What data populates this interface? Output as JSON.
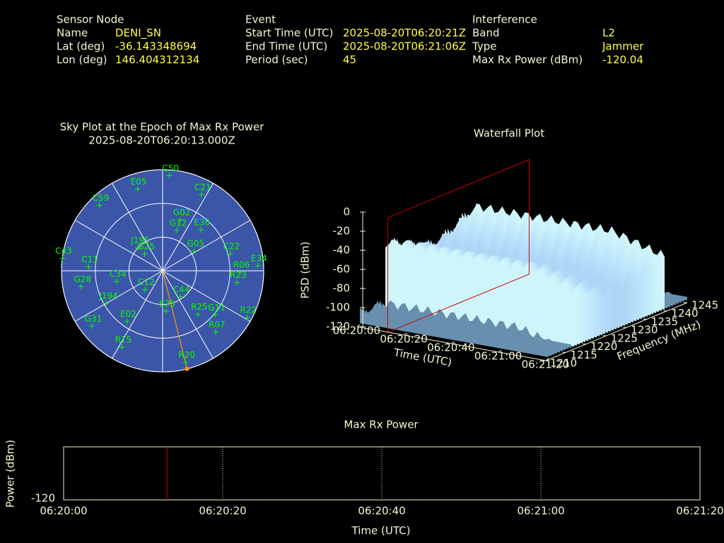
{
  "header": {
    "columns": [
      {
        "title": "Sensor Node",
        "rows": [
          [
            "Name",
            "DENI_SN"
          ],
          [
            "Lat (deg)",
            "-36.143348694"
          ],
          [
            "Lon (deg)",
            "146.404312134"
          ]
        ]
      },
      {
        "title": "Event",
        "rows": [
          [
            "Start Time (UTC)",
            "2025-08-20T06:20:21Z"
          ],
          [
            "End Time (UTC)",
            "2025-08-20T06:21:06Z"
          ],
          [
            "Period (sec)",
            "45"
          ]
        ]
      },
      {
        "title": "Interference",
        "rows": [
          [
            "Band",
            "L2"
          ],
          [
            "Type",
            "Jammer"
          ],
          [
            "Max Rx Power (dBm)",
            "-120.04"
          ]
        ]
      }
    ]
  },
  "chart_data": [
    {
      "type": "polar",
      "title": "Sky Plot at the Epoch of Max Rx Power",
      "subtitle": "2025-08-20T06:20:13.000Z",
      "background": "#3b55a8",
      "color": "#00ff00",
      "rticks": [
        0,
        30,
        60
      ],
      "azticks": [
        0,
        30,
        60,
        90,
        120,
        150,
        180,
        210,
        240,
        270,
        300,
        330
      ],
      "names": [
        "C50",
        "C21",
        "E05",
        "G02",
        "E36",
        "G05",
        "C22",
        "E34",
        "R06",
        "R23",
        "C44",
        "G11",
        "R22",
        "R07",
        "R25",
        "E25",
        "R20",
        "R15",
        "G31",
        "E02",
        "G28",
        "C11",
        "C43",
        "C59",
        "J195",
        "G25",
        "C34",
        "C12",
        "J194",
        "G12"
      ],
      "az": [
        4,
        27,
        343,
        19,
        43,
        58,
        76,
        87,
        91,
        99,
        146,
        130,
        119,
        139,
        141,
        175,
        166,
        208,
        232,
        215,
        259,
        273,
        277,
        316,
        313,
        313,
        257,
        223,
        240,
        19
      ],
      "el": [
        5,
        14,
        14,
        42,
        40,
        57,
        28,
        5,
        21,
        23,
        62,
        29,
        4,
        18,
        40,
        54,
        6,
        13,
        10,
        35,
        16,
        24,
        0,
        9,
        60,
        68,
        48,
        67,
        32,
        52
      ],
      "direction": {
        "az": 166,
        "el": 0,
        "color": "#ff9900"
      }
    },
    {
      "type": "surface",
      "title": "Waterfall Plot",
      "xlabel": "Time (UTC)",
      "ylabel": "Frequency (MHz)",
      "zlabel": "PSD (dBm)",
      "xlim": [
        0,
        80
      ],
      "xticks": [
        {
          "value": 0,
          "label": "06:20:00"
        },
        {
          "value": 20,
          "label": "06:20:20"
        },
        {
          "value": 40,
          "label": "06:20:40"
        },
        {
          "value": 60,
          "label": "06:21:00"
        },
        {
          "value": 80,
          "label": "06:21:20"
        }
      ],
      "ylim": [
        1210,
        1245
      ],
      "yticks": [
        1210,
        1215,
        1220,
        1225,
        1230,
        1235,
        1240,
        1245
      ],
      "zlim": [
        -120,
        0
      ],
      "zticks": [
        0,
        -20,
        -40,
        -60,
        -80,
        -100,
        -120
      ],
      "epoch": 13,
      "epoch_color": "#cc0000"
    },
    {
      "type": "line",
      "title": "Max Rx Power",
      "xlabel": "Time (UTC)",
      "ylabel": "Power (dBm)",
      "xlim": [
        0,
        80
      ],
      "xticks": [
        {
          "value": 0,
          "label": "06:20:00"
        },
        {
          "value": 20,
          "label": "06:20:20"
        },
        {
          "value": 40,
          "label": "06:20:40"
        },
        {
          "value": 60,
          "label": "06:21:00"
        },
        {
          "value": 80,
          "label": "06:21:20"
        }
      ],
      "ylim": [
        -120,
        -110
      ],
      "yticks": [
        -120
      ],
      "grid": true,
      "events": [
        13
      ],
      "event_color": "#cc0000"
    }
  ]
}
